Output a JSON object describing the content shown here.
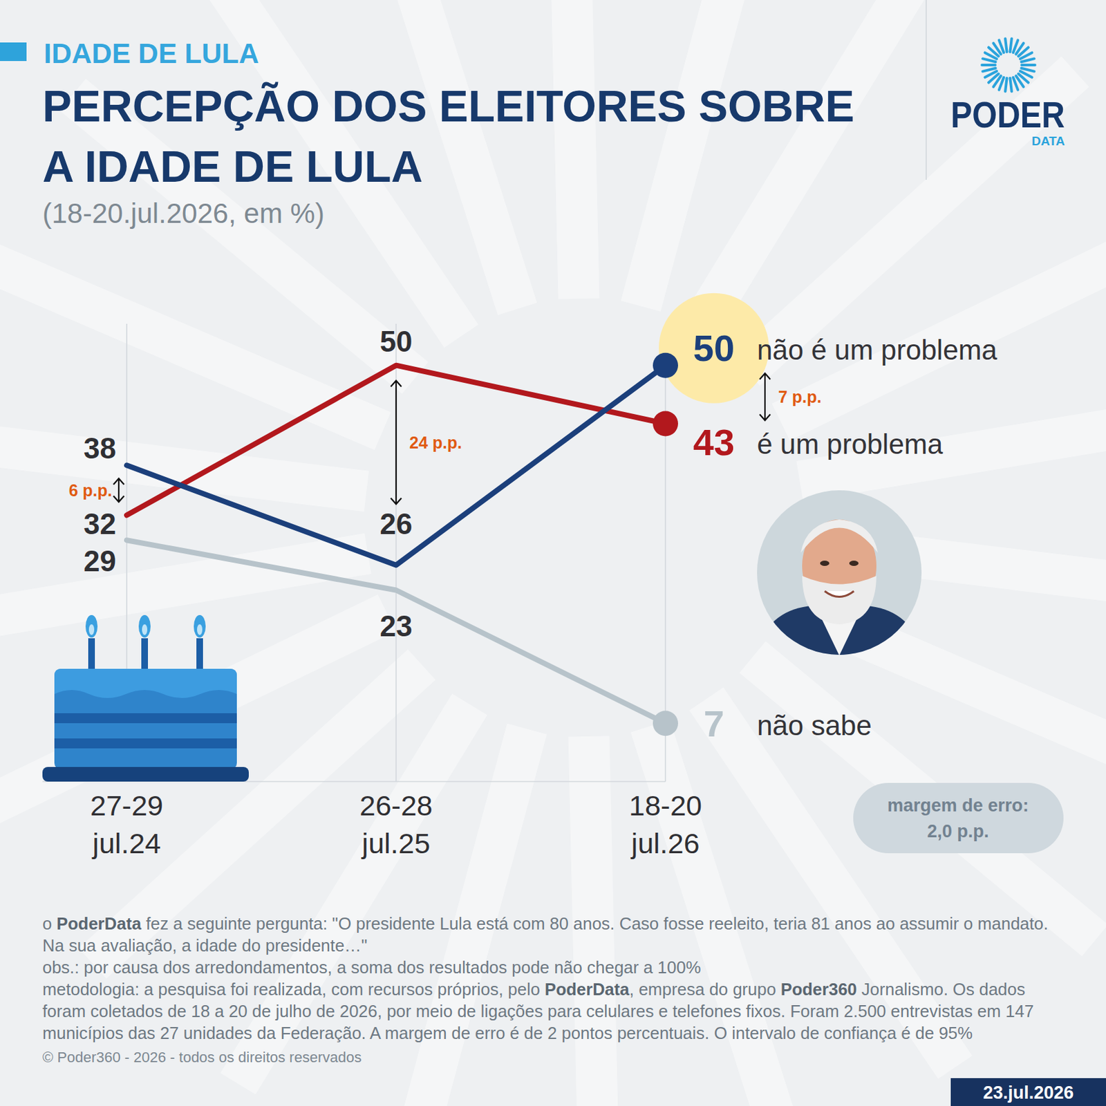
{
  "header": {
    "kicker": "IDADE DE LULA"
  },
  "logo": {
    "name": "PODER",
    "sub": "DATA"
  },
  "chart_data": {
    "type": "line",
    "title": "PERCEPÇÃO DOS ELEITORES SOBRE A IDADE DE LULA",
    "subtitle": "(18-20.jul.2026, em %)",
    "categories": [
      "27-29 jul.24",
      "26-28 jul.25",
      "18-20 jul.26"
    ],
    "series": [
      {
        "name": "não é um problema",
        "color": "#1b3f7b",
        "values": [
          38,
          26,
          50
        ]
      },
      {
        "name": "é um problema",
        "color": "#b2181d",
        "values": [
          32,
          50,
          43
        ]
      },
      {
        "name": "não sabe",
        "color": "#b7c3ca",
        "values": [
          29,
          23,
          7
        ]
      }
    ],
    "ylim": [
      0,
      55
    ],
    "grid": true,
    "data_labels": true,
    "tick_labels": "x",
    "annotations": [
      {
        "text": "6 p.p.",
        "x": "27-29 jul.24"
      },
      {
        "text": "24 p.p.",
        "x": "26-28 jul.25"
      },
      {
        "text": "7 p.p.",
        "x": "18-20 jul.26"
      }
    ],
    "error_margin": {
      "label": "margem de erro:",
      "value": "2,0 p.p."
    }
  },
  "footer": {
    "notes": [
      [
        {
          "text": "o "
        },
        {
          "text": "PoderData",
          "bold": true
        },
        {
          "text": " fez a seguinte pergunta: \"O presidente Lula está com 80 anos. Caso fosse reeleito, teria 81 anos ao assumir o mandato. Na sua avaliação, a idade do presidente…\""
        }
      ],
      [
        {
          "text": "obs.: por causa dos arredondamentos, a soma dos resultados pode não chegar a 100%"
        }
      ],
      [
        {
          "text": "metodologia: a pesquisa foi realizada, com recursos próprios, pelo "
        },
        {
          "text": "PoderData",
          "bold": true
        },
        {
          "text": ", empresa do grupo "
        },
        {
          "text": "Poder360",
          "bold": true
        },
        {
          "text": " Jornalismo. Os dados foram coletados de 18 a 20 de julho de 2026, por meio de ligações para celulares e telefones fixos. Foram 2.500 entrevistas em 147 municípios das 27 unidades da Federação. A margem de erro é de 2 pontos percentuais. O intervalo de confiança é de 95%"
        }
      ]
    ],
    "copyright": "© Poder360 - 2026 - todos os direitos reservados",
    "date": "23.jul.2026"
  }
}
